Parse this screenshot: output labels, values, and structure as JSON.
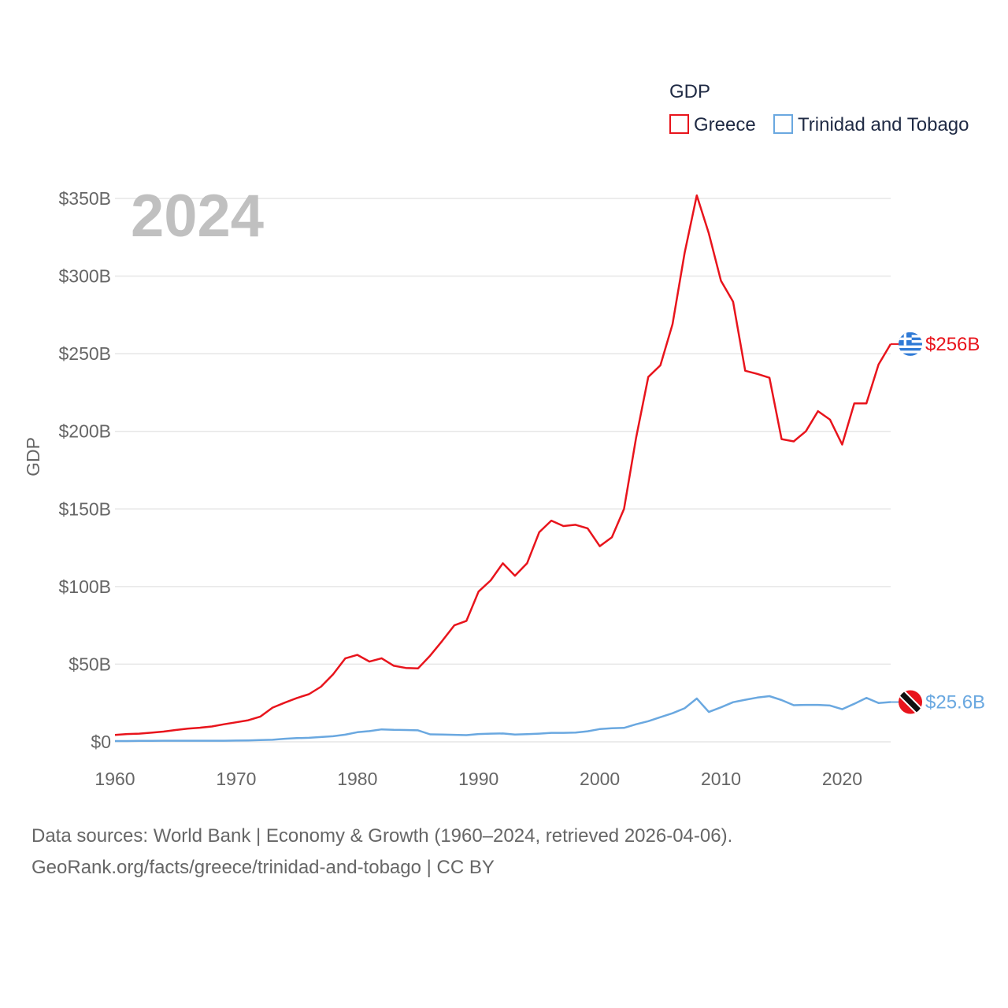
{
  "chart_data": {
    "type": "line",
    "title": "",
    "ylabel": "GDP",
    "xlabel": "",
    "year_label": "2024",
    "legend": {
      "title": "GDP",
      "position": "top-right"
    },
    "xlim": [
      1960,
      2024
    ],
    "ylim": [
      0,
      350
    ],
    "x_ticks": [
      1960,
      1970,
      1980,
      1990,
      2000,
      2010,
      2020
    ],
    "x_tick_labels": [
      "1960",
      "1970",
      "1980",
      "1990",
      "2000",
      "2010",
      "2020"
    ],
    "y_ticks": [
      0,
      50,
      100,
      150,
      200,
      250,
      300,
      350
    ],
    "y_tick_labels": [
      "$0",
      "$50B",
      "$100B",
      "$150B",
      "$200B",
      "$250B",
      "$300B",
      "$350B"
    ],
    "x": [
      1960,
      1961,
      1962,
      1963,
      1964,
      1965,
      1966,
      1967,
      1968,
      1969,
      1970,
      1971,
      1972,
      1973,
      1974,
      1975,
      1976,
      1977,
      1978,
      1979,
      1980,
      1981,
      1982,
      1983,
      1984,
      1985,
      1986,
      1987,
      1988,
      1989,
      1990,
      1991,
      1992,
      1993,
      1994,
      1995,
      1996,
      1997,
      1998,
      1999,
      2000,
      2001,
      2002,
      2003,
      2004,
      2005,
      2006,
      2007,
      2008,
      2009,
      2010,
      2011,
      2012,
      2013,
      2014,
      2015,
      2016,
      2017,
      2018,
      2019,
      2020,
      2021,
      2022,
      2023,
      2024
    ],
    "series": [
      {
        "name": "Greece",
        "color": "#e8141c",
        "end_label": "$256B",
        "flag": "greece-flag",
        "values": [
          4.4,
          5.0,
          5.3,
          5.9,
          6.6,
          7.6,
          8.5,
          9.1,
          9.9,
          11.3,
          12.6,
          13.9,
          16.3,
          22.0,
          25.2,
          28.2,
          30.7,
          35.5,
          43.5,
          53.7,
          56.0,
          51.7,
          53.8,
          49.0,
          47.6,
          47.3,
          55.5,
          65.0,
          75.0,
          77.9,
          96.8,
          104.0,
          115.0,
          107.0,
          115.0,
          135.0,
          142.5,
          139.0,
          139.8,
          137.5,
          126.0,
          131.8,
          150.0,
          196.0,
          235.0,
          242.5,
          269.0,
          315.0,
          352.0,
          327.5,
          297.0,
          283.5,
          239.0,
          237.0,
          234.5,
          195.0,
          193.5,
          200.0,
          213.0,
          207.5,
          191.5,
          218.0,
          218.0,
          243.0,
          256.2
        ]
      },
      {
        "name": "Trinidad and Tobago",
        "color": "#6aa8e0",
        "end_label": "$25.6B",
        "flag": "trinidad-and-tobago-flag",
        "values": [
          0.5,
          0.5,
          0.6,
          0.6,
          0.7,
          0.7,
          0.7,
          0.7,
          0.7,
          0.7,
          0.8,
          0.9,
          1.1,
          1.3,
          2.0,
          2.4,
          2.6,
          3.1,
          3.6,
          4.6,
          6.2,
          6.9,
          8.0,
          7.7,
          7.6,
          7.4,
          4.8,
          4.7,
          4.5,
          4.3,
          5.0,
          5.3,
          5.4,
          4.7,
          4.9,
          5.3,
          5.8,
          5.8,
          6.0,
          6.8,
          8.2,
          8.8,
          9.0,
          11.3,
          13.3,
          15.9,
          18.4,
          21.6,
          27.9,
          19.2,
          22.2,
          25.5,
          27.1,
          28.5,
          29.4,
          26.9,
          23.6,
          23.8,
          23.8,
          23.4,
          21.0,
          24.5,
          28.3,
          25.0,
          25.6
        ]
      }
    ]
  },
  "source": {
    "line1": "Data sources: World Bank | Economy & Growth (1960–2024, retrieved 2026-04-06).",
    "line2": "GeoRank.org/facts/greece/trinidad-and-tobago | CC BY"
  }
}
